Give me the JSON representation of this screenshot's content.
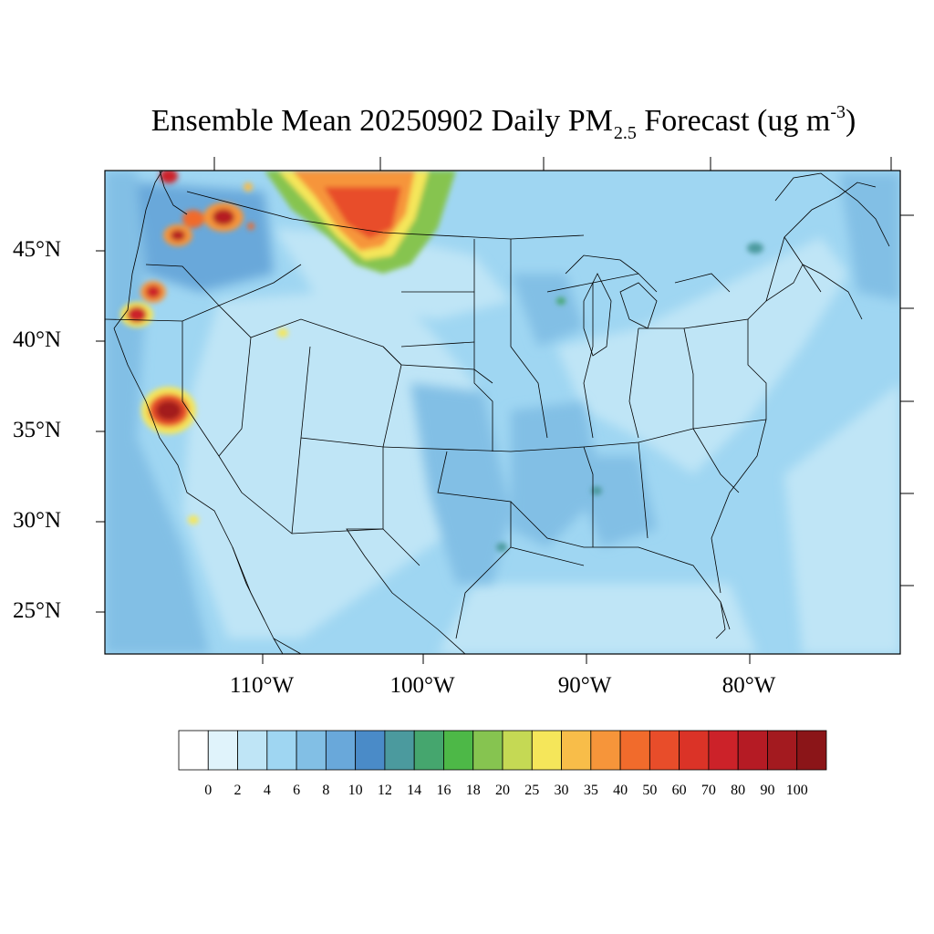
{
  "figure": {
    "title_prefix": "Ensemble Mean 20250902 Daily PM",
    "title_subscript": "2.5",
    "title_middle": " Forecast (ug m",
    "title_superscript": "-3",
    "title_suffix": ")"
  },
  "axes": {
    "lat_labels": [
      "45°N",
      "40°N",
      "35°N",
      "30°N",
      "25°N"
    ],
    "lon_labels": [
      "110°W",
      "100°W",
      "90°W",
      "80°W"
    ]
  },
  "colorbar": {
    "levels": [
      "0",
      "2",
      "4",
      "6",
      "8",
      "10",
      "12",
      "14",
      "16",
      "18",
      "20",
      "25",
      "30",
      "35",
      "40",
      "50",
      "60",
      "70",
      "80",
      "90",
      "100"
    ],
    "colors": [
      "#ffffff",
      "#e0f3fb",
      "#bfe5f6",
      "#9fd6f2",
      "#82bfe5",
      "#69a8da",
      "#4a8bc8",
      "#4b9a9e",
      "#45a66e",
      "#4db847",
      "#86c450",
      "#c5d954",
      "#f5e65a",
      "#f8bd49",
      "#f6953a",
      "#f16b2c",
      "#e84d2a",
      "#db3327",
      "#cc2229",
      "#b51b24",
      "#a31a1f",
      "#8b1518"
    ]
  },
  "field": {
    "background_color": "#bfe5f6",
    "description_classes": {
      "clean": "#bfe5f6",
      "moderate": "#9fd6f2",
      "elevated": "#82bfe5"
    }
  }
}
